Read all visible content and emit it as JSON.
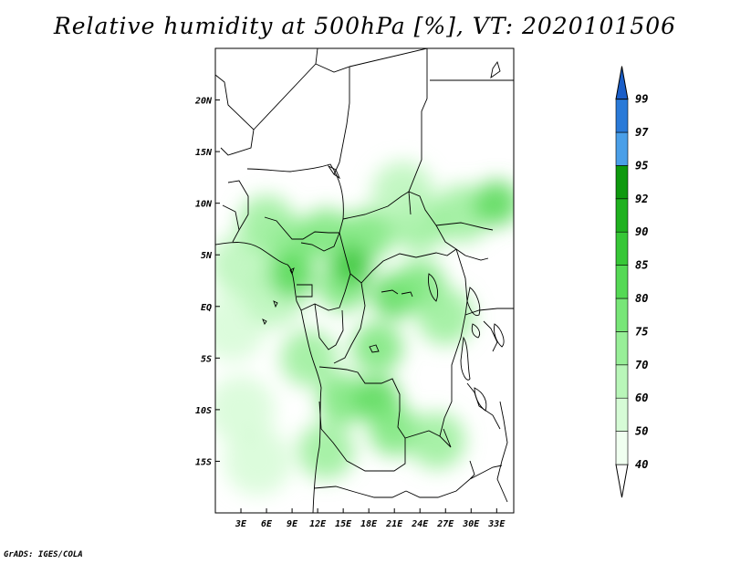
{
  "title": "Relative humidity at 500hPa [%], VT: 2020101506",
  "credit": "GrADS: IGES/COLA",
  "map": {
    "lon_range": [
      0,
      35
    ],
    "lat_range": [
      -20,
      25
    ],
    "lon_ticks": [
      {
        "value": 3,
        "label": "3E"
      },
      {
        "value": 6,
        "label": "6E"
      },
      {
        "value": 9,
        "label": "9E"
      },
      {
        "value": 12,
        "label": "12E"
      },
      {
        "value": 15,
        "label": "15E"
      },
      {
        "value": 18,
        "label": "18E"
      },
      {
        "value": 21,
        "label": "21E"
      },
      {
        "value": 24,
        "label": "24E"
      },
      {
        "value": 27,
        "label": "27E"
      },
      {
        "value": 30,
        "label": "30E"
      },
      {
        "value": 33,
        "label": "33E"
      }
    ],
    "lat_ticks": [
      {
        "value": 20,
        "label": "20N"
      },
      {
        "value": 15,
        "label": "15N"
      },
      {
        "value": 10,
        "label": "10N"
      },
      {
        "value": 5,
        "label": "5N"
      },
      {
        "value": 0,
        "label": "EQ"
      },
      {
        "value": -5,
        "label": "5S"
      },
      {
        "value": -10,
        "label": "10S"
      },
      {
        "value": -15,
        "label": "15S"
      }
    ]
  },
  "colorbar": {
    "levels": [
      {
        "label": "40",
        "color": "#f0fff0"
      },
      {
        "label": "50",
        "color": "#d6fbd6"
      },
      {
        "label": "60",
        "color": "#b9f6b9"
      },
      {
        "label": "70",
        "color": "#98ef98"
      },
      {
        "label": "75",
        "color": "#78e678"
      },
      {
        "label": "80",
        "color": "#55d955"
      },
      {
        "label": "85",
        "color": "#37c737"
      },
      {
        "label": "90",
        "color": "#1fb11f"
      },
      {
        "label": "92",
        "color": "#0e990e"
      },
      {
        "label": "95",
        "color": "#4a9fe8"
      },
      {
        "label": "97",
        "color": "#2a7ad8"
      },
      {
        "label": "99",
        "color": "#1a5ec8"
      }
    ],
    "top_triangle_color": "#1a5ec8",
    "bottom_triangle_color": "#ffffff"
  },
  "humidity_field": [
    {
      "lon": 3,
      "lat": 4,
      "level": "60"
    },
    {
      "lon": 2,
      "lat": -2,
      "level": "50"
    },
    {
      "lon": 3,
      "lat": -10,
      "level": "50"
    },
    {
      "lon": 5,
      "lat": -15,
      "level": "50"
    },
    {
      "lon": 7,
      "lat": 1,
      "level": "60"
    },
    {
      "lon": 9,
      "lat": 6,
      "level": "75"
    },
    {
      "lon": 6,
      "lat": 8,
      "level": "70"
    },
    {
      "lon": 13,
      "lat": 7,
      "level": "75"
    },
    {
      "lon": 18,
      "lat": 7,
      "level": "75"
    },
    {
      "lon": 24,
      "lat": 8,
      "level": "70"
    },
    {
      "lon": 29,
      "lat": 9,
      "level": "70"
    },
    {
      "lon": 33,
      "lat": 10,
      "level": "80"
    },
    {
      "lon": 22,
      "lat": 11,
      "level": "60"
    },
    {
      "lon": 15,
      "lat": 2,
      "level": "75"
    },
    {
      "lon": 21,
      "lat": 1,
      "level": "80"
    },
    {
      "lon": 24,
      "lat": 2,
      "level": "75"
    },
    {
      "lon": 27,
      "lat": -1,
      "level": "70"
    },
    {
      "lon": 19,
      "lat": -4,
      "level": "75"
    },
    {
      "lon": 15,
      "lat": -9,
      "level": "75"
    },
    {
      "lon": 19,
      "lat": -9,
      "level": "80"
    },
    {
      "lon": 21,
      "lat": -12,
      "level": "75"
    },
    {
      "lon": 26,
      "lat": -13,
      "level": "70"
    },
    {
      "lon": 13,
      "lat": -14,
      "level": "70"
    },
    {
      "lon": 11,
      "lat": -5,
      "level": "70"
    },
    {
      "lon": 16,
      "lat": 4,
      "level": "85"
    },
    {
      "lon": 9,
      "lat": 3,
      "level": "80"
    }
  ]
}
